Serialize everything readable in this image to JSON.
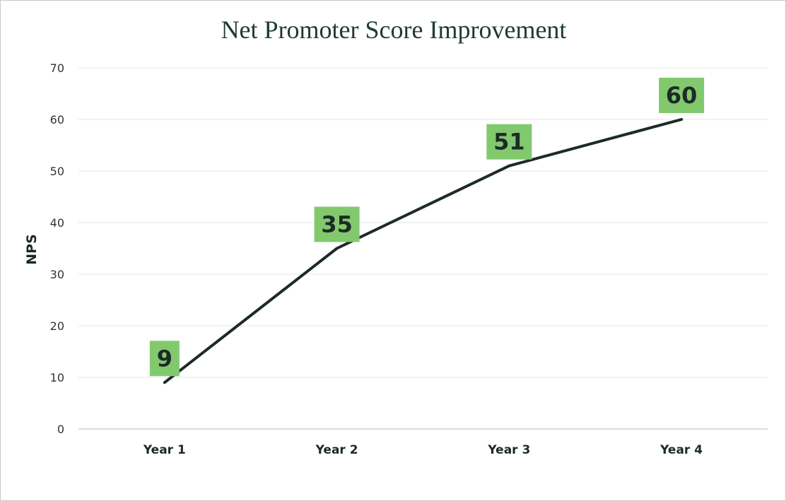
{
  "chart_data": {
    "type": "line",
    "title": "Net Promoter Score Improvement",
    "xlabel": "",
    "ylabel": "NPS",
    "categories": [
      "Year 1",
      "Year 2",
      "Year 3",
      "Year 4"
    ],
    "series": [
      {
        "values": [
          9,
          35,
          51,
          60
        ]
      }
    ],
    "ylim": [
      0,
      70
    ],
    "yticks": [
      0,
      10,
      20,
      30,
      40,
      50,
      60,
      70
    ],
    "grid": true,
    "legend": "none",
    "colors": {
      "line": "#1c2b27",
      "label_background": "#82c96e",
      "gridline": "#e6e6e6",
      "axis": "#d0d0d0",
      "title": "#1f3a35"
    }
  }
}
